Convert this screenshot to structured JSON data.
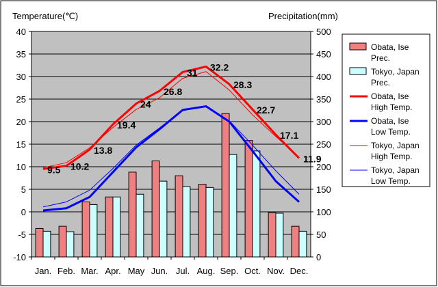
{
  "chart_data": {
    "type": "bar+line",
    "left_axis_title": "Temperature(℃)",
    "right_axis_title": "Precipitation(mm)",
    "categories": [
      "Jan.",
      "Feb.",
      "Mar.",
      "Apr.",
      "May",
      "Jun.",
      "Jul.",
      "Aug.",
      "Sep.",
      "Oct.",
      "Nov.",
      "Dec."
    ],
    "ylim_left": [
      -10,
      40
    ],
    "ylim_right": [
      0,
      500
    ],
    "yticks_left": [
      "40",
      "35",
      "30",
      "25",
      "20",
      "15",
      "10",
      "5",
      "0",
      "-5",
      "-10"
    ],
    "yticks_right": [
      "500",
      "450",
      "400",
      "350",
      "300",
      "250",
      "200",
      "150",
      "100",
      "50",
      "0"
    ],
    "grid": true,
    "legend_position": "right",
    "bars": [
      {
        "name": "Obata, Ise Prec.",
        "legend_lines": [
          "Obata, Ise",
          "Prec."
        ],
        "color": "#f08080",
        "values": [
          63,
          68,
          122,
          133,
          188,
          213,
          180,
          161,
          318,
          258,
          98,
          68
        ]
      },
      {
        "name": "Tokyo, Japan Prec.",
        "legend_lines": [
          "Tokyo, Japan",
          "Prec."
        ],
        "color": "#ccffff",
        "values": [
          57,
          56,
          116,
          133,
          139,
          168,
          156,
          154,
          227,
          235,
          97,
          57
        ]
      }
    ],
    "lines": [
      {
        "name": "Obata, Ise High Temp.",
        "legend_lines": [
          "Obata, Ise",
          "High Temp."
        ],
        "color": "#ff0000",
        "width": 3,
        "values": [
          9.5,
          10.2,
          13.8,
          19.4,
          24,
          26.8,
          31,
          32.2,
          28.3,
          22.7,
          17.1,
          11.9
        ],
        "data_labels": [
          "9.5",
          "10.2",
          "13.8",
          "19.4",
          "24",
          "26.8",
          "31",
          "32.2",
          "28.3",
          "22.7",
          "17.1",
          "11.9"
        ]
      },
      {
        "name": "Obata, Ise Low Temp.",
        "legend_lines": [
          "Obata, Ise",
          "Low Temp."
        ],
        "color": "#0000ff",
        "width": 3,
        "values": [
          0.3,
          0.8,
          3.3,
          8.8,
          14.3,
          18.3,
          22.6,
          23.4,
          20.0,
          13.5,
          6.8,
          2.2
        ]
      },
      {
        "name": "Tokyo, Japan High Temp.",
        "legend_lines": [
          "Tokyo, Japan",
          "High Temp."
        ],
        "color": "#ff0000",
        "width": 1,
        "values": [
          9.8,
          10.9,
          14.2,
          18.7,
          22.7,
          25.3,
          29.6,
          31.1,
          27.0,
          21.5,
          16.7,
          12.1
        ]
      },
      {
        "name": "Tokyo, Japan Low Temp.",
        "legend_lines": [
          "Tokyo, Japan",
          "Low Temp."
        ],
        "color": "#0000ff",
        "width": 1,
        "values": [
          1.1,
          2.2,
          4.8,
          9.6,
          14.8,
          18.6,
          22.6,
          23.4,
          20.2,
          14.8,
          9.1,
          3.9
        ]
      }
    ]
  }
}
